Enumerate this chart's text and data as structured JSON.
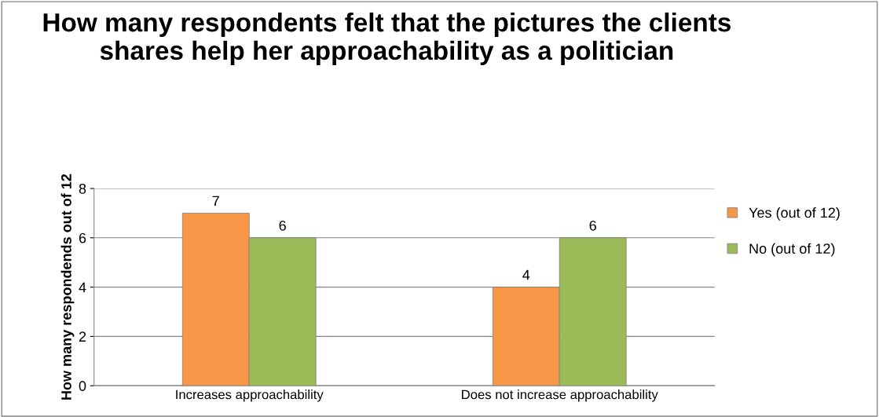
{
  "chart_data": {
    "type": "bar",
    "title": "How many respondents felt that the pictures the clients shares help her approachability as a politician",
    "ylabel": "How many respondends out of 12",
    "categories": [
      "Increases approachability",
      "Does not increase approachability"
    ],
    "series": [
      {
        "name": "Yes (out of 12)",
        "color": "#f79646",
        "values": [
          7,
          4
        ]
      },
      {
        "name": "No (out of 12)",
        "color": "#9bbb59",
        "values": [
          6,
          6
        ]
      }
    ],
    "ylim": [
      0,
      8
    ],
    "yticks": [
      0,
      2,
      4,
      6,
      8
    ],
    "grid": "y",
    "legend": "right",
    "data_labels": true
  }
}
